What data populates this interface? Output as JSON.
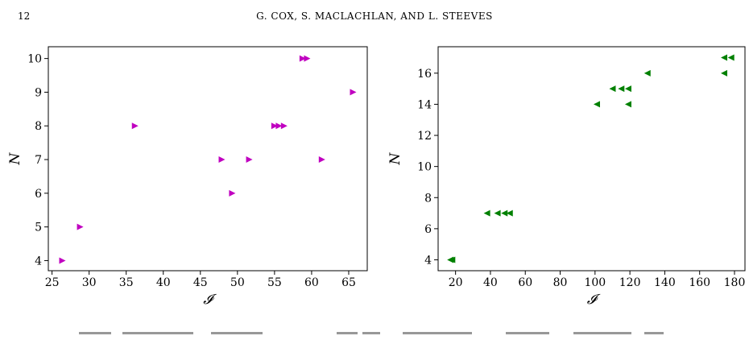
{
  "header": {
    "page_number": "12",
    "running_head": "G. COX, S. MACLACHLAN, AND L. STEEVES"
  },
  "chart_data": [
    {
      "type": "scatter",
      "marker": "right-triangle",
      "color": "#c000c0",
      "xlabel": "𝓘",
      "ylabel": "N",
      "xlim": [
        24.5,
        67.5
      ],
      "ylim": [
        3.7,
        10.35
      ],
      "xticks": [
        25,
        30,
        35,
        40,
        45,
        50,
        55,
        60,
        65
      ],
      "yticks": [
        4,
        5,
        6,
        7,
        8,
        9,
        10
      ],
      "grid": false,
      "points": [
        {
          "x": 26.4,
          "y": 4
        },
        {
          "x": 28.8,
          "y": 5
        },
        {
          "x": 36.2,
          "y": 8
        },
        {
          "x": 47.9,
          "y": 7
        },
        {
          "x": 49.3,
          "y": 6
        },
        {
          "x": 51.6,
          "y": 7
        },
        {
          "x": 55.0,
          "y": 8
        },
        {
          "x": 55.6,
          "y": 8
        },
        {
          "x": 56.3,
          "y": 8
        },
        {
          "x": 58.8,
          "y": 10
        },
        {
          "x": 59.4,
          "y": 10
        },
        {
          "x": 61.4,
          "y": 7
        },
        {
          "x": 65.6,
          "y": 9
        }
      ]
    },
    {
      "type": "scatter",
      "marker": "left-triangle",
      "color": "#008000",
      "xlabel": "𝓘",
      "ylabel": "N",
      "xlim": [
        10,
        186
      ],
      "ylim": [
        3.3,
        17.7
      ],
      "xticks": [
        20,
        40,
        60,
        80,
        100,
        120,
        140,
        160,
        180
      ],
      "yticks": [
        4,
        6,
        8,
        10,
        12,
        14,
        16
      ],
      "grid": false,
      "points": [
        {
          "x": 17,
          "y": 4
        },
        {
          "x": 18,
          "y": 4
        },
        {
          "x": 38,
          "y": 7
        },
        {
          "x": 44,
          "y": 7
        },
        {
          "x": 48,
          "y": 7
        },
        {
          "x": 51,
          "y": 7
        },
        {
          "x": 101,
          "y": 14
        },
        {
          "x": 110,
          "y": 15
        },
        {
          "x": 115,
          "y": 15
        },
        {
          "x": 119,
          "y": 15
        },
        {
          "x": 119,
          "y": 14
        },
        {
          "x": 130,
          "y": 16
        },
        {
          "x": 174,
          "y": 17
        },
        {
          "x": 174,
          "y": 16
        },
        {
          "x": 178,
          "y": 17
        }
      ]
    }
  ]
}
